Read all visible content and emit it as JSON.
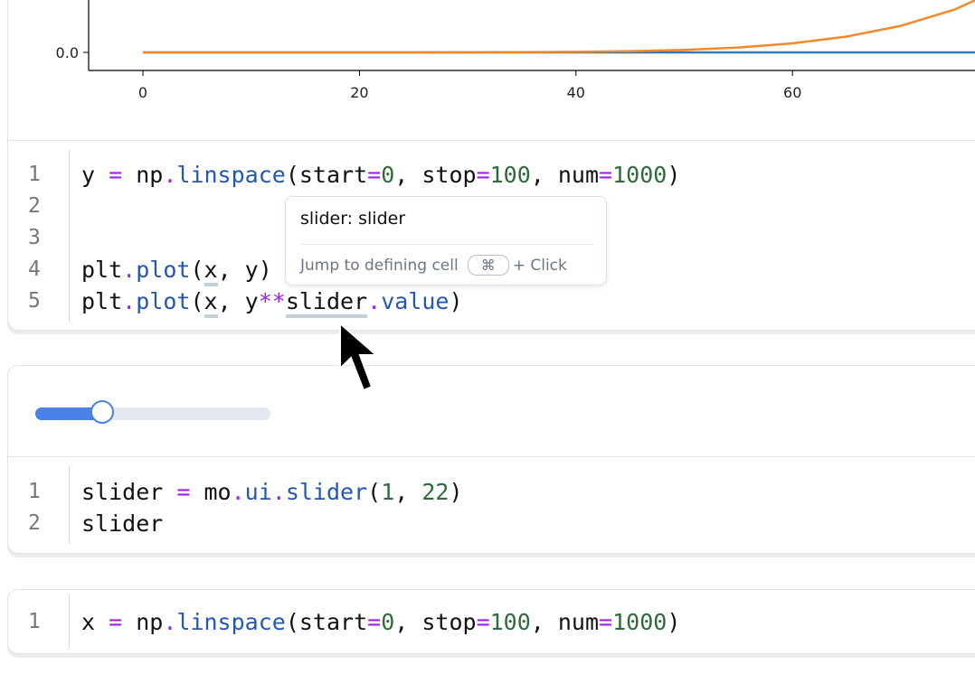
{
  "cells": [
    {
      "output": {
        "chart_data": {
          "type": "line",
          "x": [
            0,
            5,
            10,
            15,
            20,
            25,
            30,
            35,
            40,
            45,
            50,
            55,
            60,
            65,
            70,
            75,
            80,
            85,
            90,
            95,
            100
          ],
          "series": [
            {
              "values": [
                0,
                5,
                10,
                15,
                20,
                25,
                30,
                35,
                40,
                45,
                50,
                55,
                60,
                65,
                70,
                75,
                80,
                85,
                90,
                95,
                100
              ],
              "color": "#3a75b0"
            },
            {
              "values": [
                0,
                78125,
                10000000.0,
                170860000.0,
                1280000000.0,
                6103500000.0,
                21870000000.0,
                64339000000.0,
                163840000000.0,
                373670000000.0,
                781250000000.0,
                1522400000000.0,
                2799400000000.0,
                4902200000000.0,
                8235400000000.0,
                13348000000000.0,
                20972000000000.0,
                32058000000000.0,
                47830000000000.0,
                69834000000000.0,
                100000000000000.0
              ],
              "color": "#f08a2c"
            }
          ],
          "xticks": [
            "0",
            "20",
            "40",
            "60"
          ],
          "yticks": [
            "0.0"
          ],
          "xlim": [
            -5,
            100
          ]
        }
      },
      "code": [
        [
          {
            "t": "y "
          },
          {
            "t": "=",
            "c": "op"
          },
          {
            "t": " np"
          },
          {
            "t": ".",
            "c": "op"
          },
          {
            "t": "linspace",
            "c": "fn"
          },
          {
            "t": "(start"
          },
          {
            "t": "=",
            "c": "op"
          },
          {
            "t": "0",
            "c": "num"
          },
          {
            "t": ", stop"
          },
          {
            "t": "=",
            "c": "op"
          },
          {
            "t": "100",
            "c": "num"
          },
          {
            "t": ", num"
          },
          {
            "t": "=",
            "c": "op"
          },
          {
            "t": "1000",
            "c": "num"
          },
          {
            "t": ")"
          }
        ],
        [],
        [],
        [
          {
            "t": "plt"
          },
          {
            "t": ".",
            "c": "op"
          },
          {
            "t": "plot",
            "c": "fn"
          },
          {
            "t": "("
          },
          {
            "t": "x",
            "c": "ul"
          },
          {
            "t": ", y)"
          }
        ],
        [
          {
            "t": "plt"
          },
          {
            "t": ".",
            "c": "op"
          },
          {
            "t": "plot",
            "c": "fn"
          },
          {
            "t": "("
          },
          {
            "t": "x",
            "c": "ul"
          },
          {
            "t": ", y"
          },
          {
            "t": "**",
            "c": "op"
          },
          {
            "t": "slider",
            "c": "ul"
          },
          {
            "t": ".",
            "c": "op"
          },
          {
            "t": "value",
            "c": "fn"
          },
          {
            "t": ")"
          }
        ]
      ]
    },
    {
      "output": {
        "slider": {
          "min": 1,
          "max": 22,
          "value": 7,
          "accent": "#4a80e8"
        }
      },
      "code": [
        [
          {
            "t": "slider "
          },
          {
            "t": "=",
            "c": "op"
          },
          {
            "t": " mo"
          },
          {
            "t": ".",
            "c": "op"
          },
          {
            "t": "ui",
            "c": "fn"
          },
          {
            "t": ".",
            "c": "op"
          },
          {
            "t": "slider",
            "c": "fn"
          },
          {
            "t": "("
          },
          {
            "t": "1",
            "c": "num"
          },
          {
            "t": ", "
          },
          {
            "t": "22",
            "c": "num"
          },
          {
            "t": ")"
          }
        ],
        [
          {
            "t": "slider"
          }
        ]
      ]
    },
    {
      "code": [
        [
          {
            "t": "x "
          },
          {
            "t": "=",
            "c": "op"
          },
          {
            "t": " np"
          },
          {
            "t": ".",
            "c": "op"
          },
          {
            "t": "linspace",
            "c": "fn"
          },
          {
            "t": "(start"
          },
          {
            "t": "=",
            "c": "op"
          },
          {
            "t": "0",
            "c": "num"
          },
          {
            "t": ", stop"
          },
          {
            "t": "=",
            "c": "op"
          },
          {
            "t": "100",
            "c": "num"
          },
          {
            "t": ", num"
          },
          {
            "t": "=",
            "c": "op"
          },
          {
            "t": "1000",
            "c": "num"
          },
          {
            "t": ")"
          }
        ]
      ]
    }
  ],
  "tooltip": {
    "title": "slider: slider",
    "hint": "Jump to defining cell",
    "key": "⌘",
    "suffix": "+ Click"
  },
  "cursor": "arrow-pointer-icon"
}
